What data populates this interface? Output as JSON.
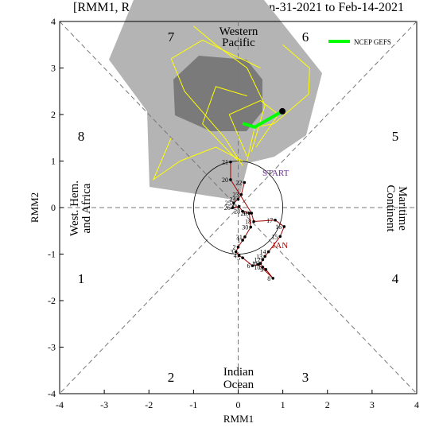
{
  "chart_data": {
    "type": "line",
    "title_left": "[RMM1, R",
    "title_right": "n-31-2021 to Feb-14-2021",
    "x_label": "RMM1",
    "y_label": "RMM2",
    "xlim": [
      -4,
      4
    ],
    "ylim": [
      -4,
      4
    ],
    "xticks": [
      -4,
      -3,
      -2,
      -1,
      0,
      1,
      2,
      3,
      4
    ],
    "yticks": [
      -4,
      -3,
      -2,
      -1,
      0,
      1,
      2,
      3,
      4
    ],
    "phases": [
      "1",
      "2",
      "3",
      "4",
      "5",
      "6",
      "7",
      "8"
    ],
    "regions": {
      "top": [
        "Western",
        "Pacific"
      ],
      "bottom": [
        "Indian",
        "Ocean"
      ],
      "left": [
        "West. Hem.",
        "and Africa"
      ],
      "right": [
        "Maritime",
        "Continent"
      ]
    },
    "annotations": [
      "START",
      "JAN"
    ],
    "series": [
      {
        "name": "NCEP GEFS",
        "color": "#00ff00",
        "x": [
          0.1,
          0.37,
          0.99
        ],
        "values": [
          1.81,
          1.73,
          2.07
        ]
      }
    ],
    "observed": {
      "color": "#a00000",
      "labels": [
        22,
        23,
        24,
        25,
        26,
        27,
        28,
        29,
        30,
        31,
        1,
        2,
        3,
        4,
        5,
        6,
        7,
        8,
        9,
        10,
        11,
        12,
        13,
        14,
        15,
        16,
        17,
        18,
        19,
        20,
        21
      ],
      "x": [
        0.14,
        0.07,
        0.0,
        -0.1,
        -0.12,
        0.02,
        0.1,
        0.25,
        0.28,
        0.15,
        0.1,
        0.0,
        -0.05,
        0.02,
        0.1,
        0.32,
        0.45,
        0.78,
        0.62,
        0.55,
        0.5,
        0.55,
        0.6,
        0.68,
        0.94,
        1.03,
        0.83,
        0.35,
        0.3,
        -0.17,
        -0.17
      ],
      "values": [
        0.54,
        0.28,
        0.18,
        0.1,
        0.0,
        0.02,
        -0.08,
        -0.12,
        -0.42,
        -0.63,
        -0.7,
        -0.85,
        -0.95,
        -1.03,
        -1.08,
        -1.25,
        -1.22,
        -1.52,
        -1.33,
        -1.28,
        -1.2,
        -1.12,
        -1.05,
        -0.95,
        -0.62,
        -0.41,
        -0.27,
        -0.3,
        -0.12,
        0.6,
        0.98
      ]
    },
    "ensemble": {
      "color": "#ffff00",
      "members": [
        {
          "x": [
            0.1,
            -0.3,
            -1.2,
            -1.5,
            -0.8,
            0.5
          ],
          "values": [
            0.9,
            1.5,
            2.5,
            3.2,
            3.6,
            3.0
          ]
        },
        {
          "x": [
            0.2,
            0.37,
            0.8,
            1.58,
            1.6,
            1.0
          ],
          "values": [
            1.0,
            1.73,
            1.8,
            2.44,
            3.0,
            3.5
          ]
        },
        {
          "x": [
            0.1,
            -0.5,
            -1.3,
            -1.9,
            -1.5
          ],
          "values": [
            1.0,
            1.3,
            1.0,
            0.6,
            1.5
          ]
        },
        {
          "x": [
            0.3,
            0.6,
            0.2,
            -0.5,
            -1.0
          ],
          "values": [
            1.2,
            2.2,
            3.0,
            3.5,
            3.9
          ]
        },
        {
          "x": [
            0.2,
            -0.2,
            0.5,
            0.9,
            0.4
          ],
          "values": [
            1.1,
            2.0,
            2.3,
            2.0,
            1.3
          ]
        },
        {
          "x": [
            0.0,
            -0.8,
            -0.5,
            0.2
          ],
          "values": [
            1.0,
            1.8,
            2.6,
            2.4
          ]
        }
      ]
    }
  }
}
